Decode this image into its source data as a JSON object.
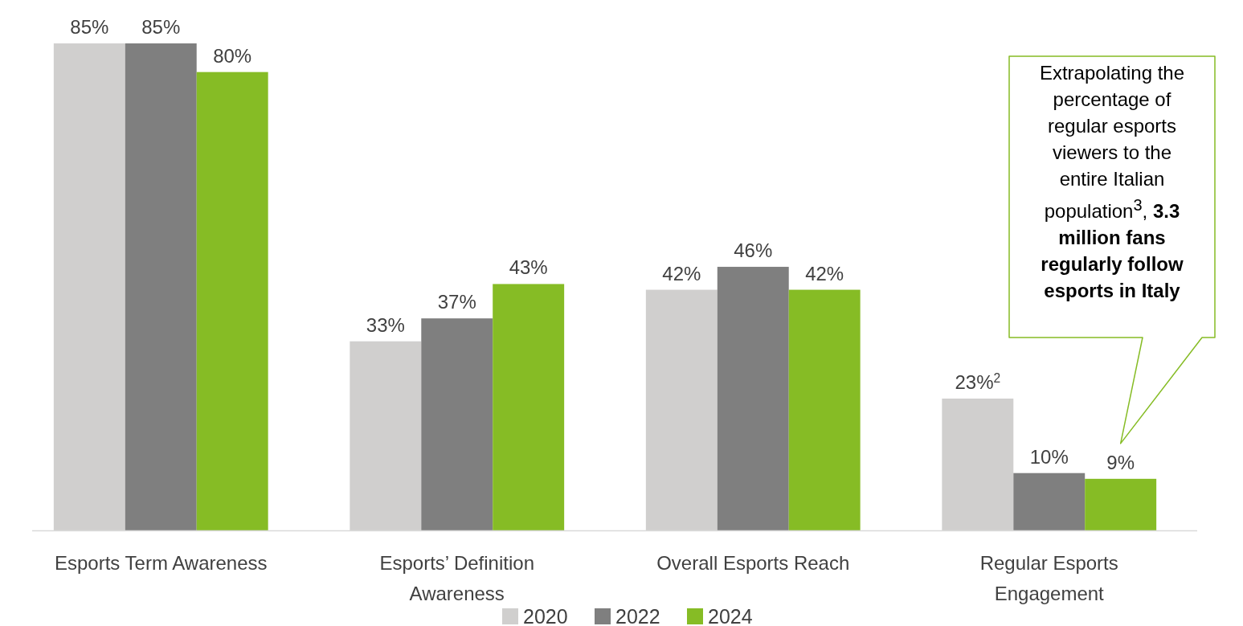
{
  "chart_data": {
    "type": "bar",
    "categories": [
      "Esports Term Awareness",
      "Esports’ Definition Awareness",
      "Overall Esports Reach",
      "Regular Esports Engagement"
    ],
    "series": [
      {
        "name": "2020",
        "color": "#d0cfce",
        "values": [
          85,
          33,
          42,
          23
        ],
        "value_labels": [
          "85%",
          "33%",
          "42%",
          "23%$^{2}$"
        ]
      },
      {
        "name": "2022",
        "color": "#7f7f7f",
        "values": [
          85,
          37,
          46,
          10
        ],
        "value_labels": [
          "85%",
          "37%",
          "46%",
          "10%"
        ]
      },
      {
        "name": "2024",
        "color": "#86bc25",
        "values": [
          80,
          43,
          42,
          9
        ],
        "value_labels": [
          "80%",
          "43%",
          "42%",
          "9%"
        ]
      }
    ],
    "annotations": [
      "Extrapolating the percentage of regular esports viewers to the entire Italian population$^{3}$,",
      "3.3 million fans regularly follow esports in Italy"
    ],
    "legend": "bottom",
    "grid": false
  }
}
